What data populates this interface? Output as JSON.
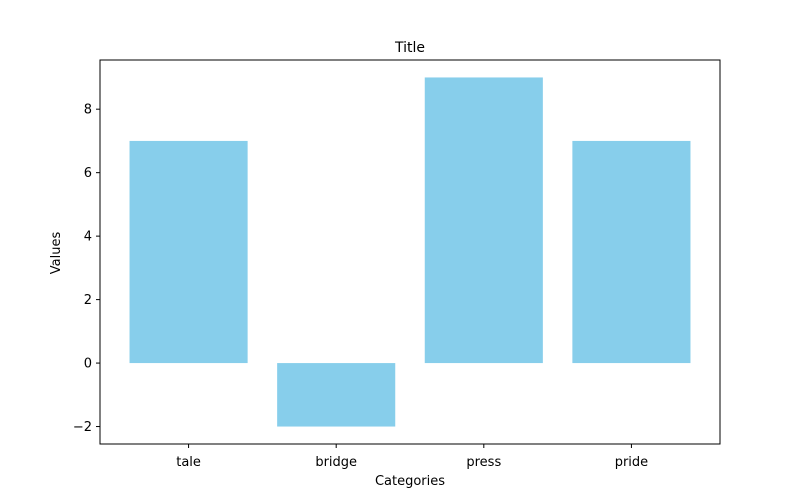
{
  "chart_data": {
    "type": "bar",
    "title": "Title",
    "xlabel": "Categories",
    "ylabel": "Values",
    "categories": [
      "tale",
      "bridge",
      "press",
      "pride"
    ],
    "values": [
      7,
      -2,
      9,
      7
    ],
    "ylim": [
      -2.55,
      9.55
    ],
    "yticks": [
      -2,
      0,
      2,
      4,
      6,
      8
    ],
    "ytick_labels": [
      "−2",
      "0",
      "2",
      "4",
      "6",
      "8"
    ],
    "bar_color": "#87ceeb",
    "grid": false,
    "legend": "none"
  }
}
